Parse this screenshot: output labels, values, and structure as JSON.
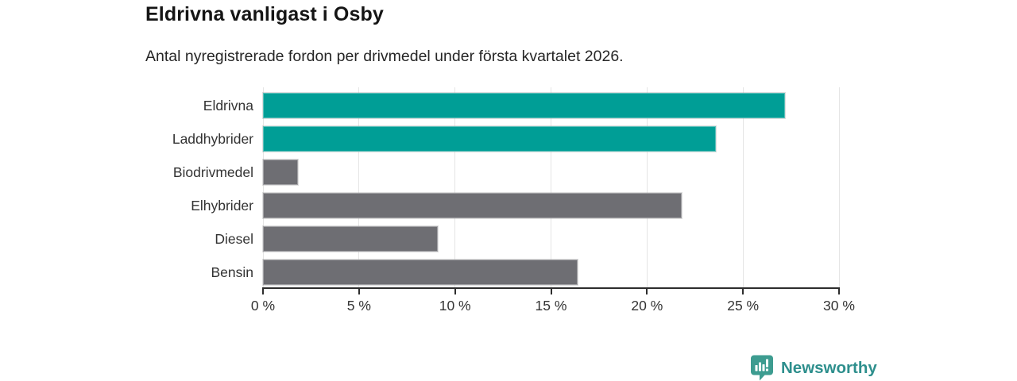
{
  "header": {
    "title": "Eldrivna vanligast i Osby",
    "subtitle": "Antal nyregistrerade fordon per drivmedel under första kvartalet 2026."
  },
  "chart_data": {
    "type": "bar",
    "orientation": "horizontal",
    "title": "Eldrivna vanligast i Osby",
    "subtitle": "Antal nyregistrerade fordon per drivmedel under första kvartalet 2026.",
    "categories": [
      "Eldrivna",
      "Laddhybrider",
      "Biodrivmedel",
      "Elhybrider",
      "Diesel",
      "Bensin"
    ],
    "values": [
      27.2,
      23.6,
      1.8,
      21.8,
      9.1,
      16.4
    ],
    "value_unit": "%",
    "bar_colors": [
      "#009e96",
      "#009e96",
      "#6e6e73",
      "#6e6e73",
      "#6e6e73",
      "#6e6e73"
    ],
    "highlight_color": "#009e96",
    "base_color": "#6e6e73",
    "xlim": [
      0,
      30
    ],
    "xtick_values": [
      0,
      5,
      10,
      15,
      20,
      25,
      30
    ],
    "xtick_labels": [
      "0 %",
      "5 %",
      "10 %",
      "15 %",
      "20 %",
      "25 %",
      "30 %"
    ],
    "grid": true,
    "gridline_color": "#e5e5e5",
    "axis_color": "#2d2d2d",
    "legend": false
  },
  "branding": {
    "logo_text": "Newsworthy",
    "logo_text_color": "#2e8f8d",
    "logo_badge_color": "#3d9c90",
    "logo_icon": "bar-chart-badge-icon"
  }
}
